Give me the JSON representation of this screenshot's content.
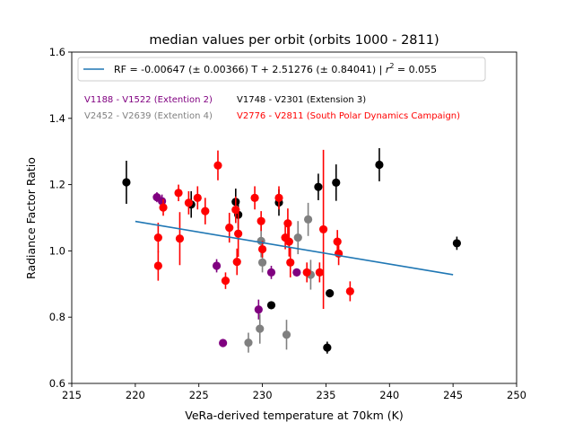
{
  "chart_data": {
    "type": "scatter",
    "title": "median values per orbit (orbits 1000 - 2811)",
    "xlabel": "VeRa-derived temperature at 70km (K)",
    "ylabel": "Radiance Factor Ratio",
    "xlim": [
      215,
      250
    ],
    "ylim": [
      0.6,
      1.6
    ],
    "xticks": [
      215,
      220,
      225,
      230,
      235,
      240,
      245,
      250
    ],
    "yticks": [
      0.6,
      0.8,
      1.0,
      1.2,
      1.4,
      1.6
    ],
    "xtick_labels": [
      "215",
      "220",
      "225",
      "230",
      "235",
      "240",
      "245",
      "250"
    ],
    "ytick_labels": [
      "0.6",
      "0.8",
      "1.0",
      "1.2",
      "1.4",
      "1.6"
    ],
    "grid": false,
    "legend": {
      "placement": "top",
      "fit_label_main": "RF = -0.00647 (± 0.00366) T + 2.51276 (± 0.84041) | ",
      "fit_label_r2": "r",
      "fit_label_r2_exp": "2",
      "fit_label_r2_value": " = 0.055"
    },
    "annotations": [
      {
        "text": "V1188 - V1522 (Extention 2)",
        "color": "#800080"
      },
      {
        "text": "V1748 - V2301 (Extension 3)",
        "color": "#000000"
      },
      {
        "text": "V2452 - V2639 (Extention 4)",
        "color": "#808080"
      },
      {
        "text": "V2776 - V2811 (South Polar Dynamics Campaign)",
        "color": "#ff0000"
      }
    ],
    "fit_line": {
      "color": "#1f77b4",
      "x": [
        220,
        245
      ],
      "y": [
        1.089,
        0.928
      ]
    },
    "series": [
      {
        "color": "#000000",
        "points": [
          {
            "x": 219.3,
            "y": 1.207,
            "yerr": 0.065
          },
          {
            "x": 224.4,
            "y": 1.14,
            "yerr": 0.04
          },
          {
            "x": 227.9,
            "y": 1.148,
            "yerr": 0.04
          },
          {
            "x": 228.1,
            "y": 1.109,
            "yerr": 0.04
          },
          {
            "x": 230.7,
            "y": 0.836,
            "yerr": 0.012
          },
          {
            "x": 231.3,
            "y": 1.146,
            "yerr": 0.04
          },
          {
            "x": 234.4,
            "y": 1.193,
            "yerr": 0.04
          },
          {
            "x": 235.3,
            "y": 0.872,
            "yerr": 0.012
          },
          {
            "x": 235.8,
            "y": 1.206,
            "yerr": 0.055
          },
          {
            "x": 239.2,
            "y": 1.26,
            "yerr": 0.05
          },
          {
            "x": 245.3,
            "y": 1.023,
            "yerr": 0.02
          },
          {
            "x": 235.1,
            "y": 0.708,
            "yerr": 0.018
          }
        ]
      },
      {
        "color": "#800080",
        "points": [
          {
            "x": 221.7,
            "y": 1.162,
            "yerr": 0.015
          },
          {
            "x": 222.1,
            "y": 1.15,
            "yerr": 0.02
          },
          {
            "x": 226.4,
            "y": 0.955,
            "yerr": 0.02
          },
          {
            "x": 226.9,
            "y": 0.722,
            "yerr": 0.008
          },
          {
            "x": 229.7,
            "y": 0.823,
            "yerr": 0.03
          },
          {
            "x": 230.7,
            "y": 0.935,
            "yerr": 0.02
          },
          {
            "x": 232.7,
            "y": 0.935,
            "yerr": 0.012
          }
        ]
      },
      {
        "color": "#808080",
        "points": [
          {
            "x": 228.9,
            "y": 0.723,
            "yerr": 0.03
          },
          {
            "x": 229.8,
            "y": 0.765,
            "yerr": 0.045
          },
          {
            "x": 229.9,
            "y": 1.03,
            "yerr": 0.05
          },
          {
            "x": 230.0,
            "y": 0.965,
            "yerr": 0.03
          },
          {
            "x": 231.9,
            "y": 0.747,
            "yerr": 0.045
          },
          {
            "x": 232.8,
            "y": 1.04,
            "yerr": 0.05
          },
          {
            "x": 233.6,
            "y": 1.095,
            "yerr": 0.05
          },
          {
            "x": 233.8,
            "y": 0.928,
            "yerr": 0.045
          }
        ]
      },
      {
        "color": "#ff0000",
        "points": [
          {
            "x": 221.8,
            "y": 1.04,
            "yerr": 0.045
          },
          {
            "x": 221.8,
            "y": 0.955,
            "yerr": 0.045
          },
          {
            "x": 222.2,
            "y": 1.131,
            "yerr": 0.025
          },
          {
            "x": 223.4,
            "y": 1.175,
            "yerr": 0.025
          },
          {
            "x": 223.5,
            "y": 1.037,
            "yerr": 0.08
          },
          {
            "x": 224.2,
            "y": 1.145,
            "yerr": 0.035
          },
          {
            "x": 224.9,
            "y": 1.16,
            "yerr": 0.035
          },
          {
            "x": 225.5,
            "y": 1.12,
            "yerr": 0.04
          },
          {
            "x": 226.5,
            "y": 1.258,
            "yerr": 0.045
          },
          {
            "x": 227.1,
            "y": 0.91,
            "yerr": 0.025
          },
          {
            "x": 227.4,
            "y": 1.07,
            "yerr": 0.045
          },
          {
            "x": 227.9,
            "y": 1.124,
            "yerr": 0.04
          },
          {
            "x": 228.0,
            "y": 0.967,
            "yerr": 0.04
          },
          {
            "x": 228.1,
            "y": 1.052,
            "yerr": 0.07
          },
          {
            "x": 229.4,
            "y": 1.16,
            "yerr": 0.035
          },
          {
            "x": 229.9,
            "y": 1.09,
            "yerr": 0.03
          },
          {
            "x": 230.0,
            "y": 1.005,
            "yerr": 0.025
          },
          {
            "x": 231.3,
            "y": 1.16,
            "yerr": 0.035
          },
          {
            "x": 231.8,
            "y": 1.04,
            "yerr": 0.035
          },
          {
            "x": 232.0,
            "y": 1.083,
            "yerr": 0.045
          },
          {
            "x": 232.1,
            "y": 1.028,
            "yerr": 0.045
          },
          {
            "x": 232.2,
            "y": 0.965,
            "yerr": 0.045
          },
          {
            "x": 233.5,
            "y": 0.935,
            "yerr": 0.03
          },
          {
            "x": 234.5,
            "y": 0.935,
            "yerr": 0.03
          },
          {
            "x": 234.8,
            "y": 1.065,
            "yerr": 0.24
          },
          {
            "x": 235.9,
            "y": 1.028,
            "yerr": 0.035
          },
          {
            "x": 236.0,
            "y": 0.992,
            "yerr": 0.035
          },
          {
            "x": 236.9,
            "y": 0.878,
            "yerr": 0.03
          }
        ]
      }
    ]
  }
}
